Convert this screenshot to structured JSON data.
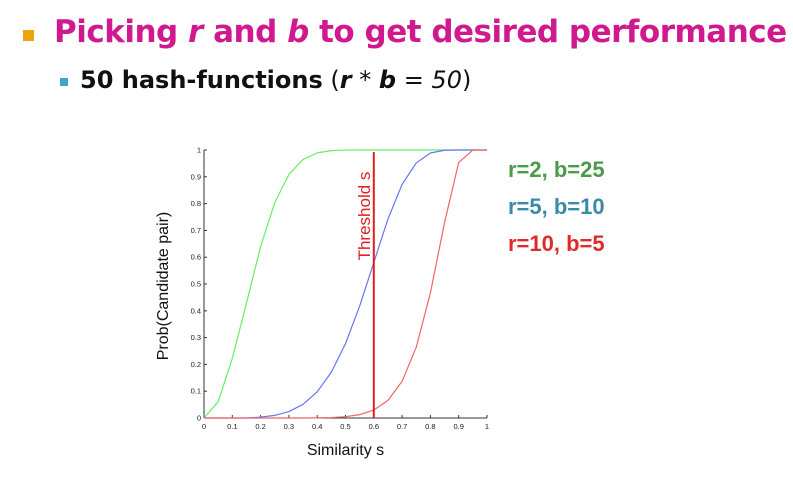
{
  "slide": {
    "title_pre": "Picking ",
    "title_r": "r",
    "title_mid": " and ",
    "title_b": "b",
    "title_post": " to get desired performance",
    "sub_bold": "50 hash-functions",
    "sub_open": " (",
    "sub_r": "r",
    "sub_star": " * ",
    "sub_b": "b",
    "sub_eq": " = 50",
    "sub_close": ")"
  },
  "colors": {
    "title": "#d0198f",
    "bullet_main": "#f0a30a",
    "bullet_sub": "#3fa8c8",
    "green": "#66ee66",
    "blue": "#6677ee",
    "red": "#ee6666",
    "threshold": "#e02020",
    "legend_green": "#4a9a4a",
    "legend_blue": "#3a8aaa",
    "legend_red": "#e02a2a"
  },
  "chart_data": {
    "type": "line",
    "xlabel": "Similarity s",
    "ylabel": "Prob(Candidate pair)",
    "xlim": [
      0,
      1
    ],
    "ylim": [
      0,
      1
    ],
    "xticks": [
      "0",
      "0.1",
      "0.2",
      "0.3",
      "0.4",
      "0.5",
      "0.6",
      "0.7",
      "0.8",
      "0.9",
      "1"
    ],
    "yticks": [
      "0",
      "0.1",
      "0.2",
      "0.3",
      "0.4",
      "0.5",
      "0.6",
      "0.7",
      "0.8",
      "0.9",
      "1"
    ],
    "x": [
      0,
      0.05,
      0.1,
      0.15,
      0.2,
      0.25,
      0.3,
      0.35,
      0.4,
      0.45,
      0.5,
      0.55,
      0.6,
      0.65,
      0.7,
      0.75,
      0.8,
      0.85,
      0.9,
      0.95,
      1
    ],
    "series": [
      {
        "name": "r=2, b=25",
        "color": "green",
        "values": [
          0,
          0.0606,
          0.2222,
          0.4284,
          0.6396,
          0.8037,
          0.9087,
          0.9648,
          0.9893,
          0.9977,
          0.9997,
          1,
          1,
          1,
          1,
          1,
          1,
          1,
          1,
          1,
          1
        ]
      },
      {
        "name": "r=5, b=10",
        "color": "blue",
        "values": [
          0,
          0,
          0,
          0,
          0.0032,
          0.0097,
          0.024,
          0.0512,
          0.0976,
          0.1712,
          0.2775,
          0.4178,
          0.5798,
          0.7426,
          0.8718,
          0.9517,
          0.9888,
          0.999,
          1,
          1,
          1
        ]
      },
      {
        "name": "r=10, b=5",
        "color": "red",
        "values": [
          0,
          0,
          0,
          0,
          0,
          0,
          0,
          0,
          0.0005,
          0.0017,
          0.0049,
          0.0125,
          0.0297,
          0.0658,
          0.1369,
          0.2643,
          0.4667,
          0.7296,
          0.9532,
          0.9999,
          1
        ]
      }
    ],
    "threshold": {
      "label": "Threshold s",
      "x": 0.6
    },
    "legend": [
      {
        "label": "r=2, b=25",
        "color": "legend_green"
      },
      {
        "label": "r=5, b=10",
        "color": "legend_blue"
      },
      {
        "label": "r=10, b=5",
        "color": "legend_red"
      }
    ],
    "legend_position": "right"
  }
}
